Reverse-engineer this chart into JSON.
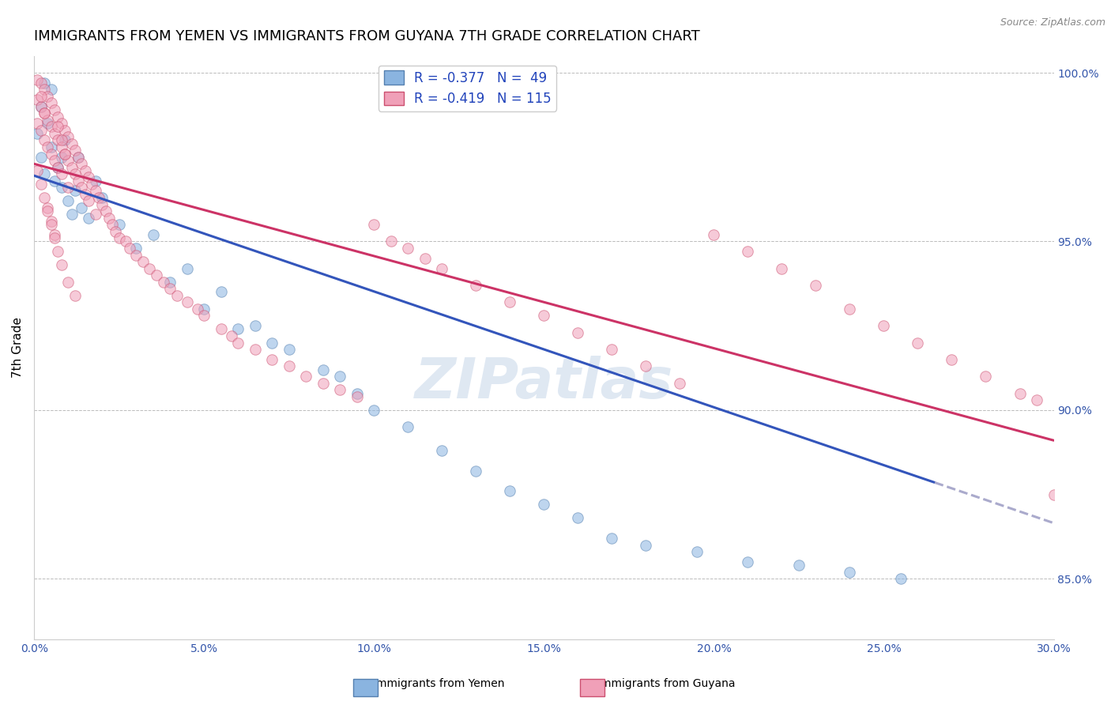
{
  "title": "IMMIGRANTS FROM YEMEN VS IMMIGRANTS FROM GUYANA 7TH GRADE CORRELATION CHART",
  "source": "Source: ZipAtlas.com",
  "ylabel": "7th Grade",
  "xlim": [
    0.0,
    0.3
  ],
  "ylim": [
    0.832,
    1.005
  ],
  "ytick_labels": [
    "85.0%",
    "90.0%",
    "95.0%",
    "100.0%"
  ],
  "ytick_values": [
    0.85,
    0.9,
    0.95,
    1.0
  ],
  "xtick_labels": [
    "0.0%",
    "5.0%",
    "10.0%",
    "15.0%",
    "20.0%",
    "25.0%",
    "30.0%"
  ],
  "xtick_values": [
    0.0,
    0.05,
    0.1,
    0.15,
    0.2,
    0.25,
    0.3
  ],
  "yemen_color": "#8ab4e0",
  "yemen_edge": "#5580b0",
  "guyana_color": "#f0a0b8",
  "guyana_edge": "#cc5070",
  "blue_line_color": "#3355bb",
  "pink_line_color": "#cc3366",
  "dash_color": "#aaaacc",
  "line_width": 2.2,
  "marker_size": 95,
  "marker_alpha": 0.55,
  "watermark": "ZIPatlas",
  "background_color": "#ffffff",
  "grid_color": "#bbbbbb",
  "legend_fontsize": 12,
  "tick_fontsize": 10,
  "title_fontsize": 13,
  "ylabel_fontsize": 11,
  "yemen_label": "R = -0.377   N =  49",
  "guyana_label": "R = -0.419   N = 115",
  "blue_line_x0": 0.0,
  "blue_line_y0": 0.9695,
  "blue_line_slope": -0.3433,
  "blue_line_solid_end": 0.265,
  "pink_line_x0": 0.0,
  "pink_line_y0": 0.973,
  "pink_line_slope": -0.2733,
  "series_yemen_x": [
    0.001,
    0.002,
    0.002,
    0.003,
    0.004,
    0.005,
    0.006,
    0.007,
    0.008,
    0.009,
    0.01,
    0.011,
    0.012,
    0.013,
    0.014,
    0.016,
    0.018,
    0.02,
    0.025,
    0.03,
    0.035,
    0.04,
    0.045,
    0.05,
    0.055,
    0.06,
    0.065,
    0.07,
    0.075,
    0.085,
    0.09,
    0.095,
    0.1,
    0.11,
    0.12,
    0.13,
    0.14,
    0.15,
    0.16,
    0.17,
    0.18,
    0.195,
    0.21,
    0.225,
    0.24,
    0.255,
    0.005,
    0.003,
    0.008
  ],
  "series_yemen_y": [
    0.982,
    0.99,
    0.975,
    0.97,
    0.985,
    0.978,
    0.968,
    0.972,
    0.966,
    0.98,
    0.962,
    0.958,
    0.965,
    0.975,
    0.96,
    0.957,
    0.968,
    0.963,
    0.955,
    0.948,
    0.952,
    0.938,
    0.942,
    0.93,
    0.935,
    0.924,
    0.925,
    0.92,
    0.918,
    0.912,
    0.91,
    0.905,
    0.9,
    0.895,
    0.888,
    0.882,
    0.876,
    0.872,
    0.868,
    0.862,
    0.86,
    0.858,
    0.855,
    0.854,
    0.852,
    0.85,
    0.995,
    0.997,
    0.975
  ],
  "series_guyana_x": [
    0.001,
    0.001,
    0.001,
    0.002,
    0.002,
    0.002,
    0.003,
    0.003,
    0.003,
    0.004,
    0.004,
    0.004,
    0.005,
    0.005,
    0.005,
    0.006,
    0.006,
    0.006,
    0.007,
    0.007,
    0.007,
    0.008,
    0.008,
    0.008,
    0.009,
    0.009,
    0.01,
    0.01,
    0.01,
    0.011,
    0.011,
    0.012,
    0.012,
    0.013,
    0.013,
    0.014,
    0.014,
    0.015,
    0.015,
    0.016,
    0.016,
    0.017,
    0.018,
    0.018,
    0.019,
    0.02,
    0.021,
    0.022,
    0.023,
    0.024,
    0.025,
    0.027,
    0.028,
    0.03,
    0.032,
    0.034,
    0.036,
    0.038,
    0.04,
    0.042,
    0.045,
    0.048,
    0.05,
    0.055,
    0.058,
    0.06,
    0.065,
    0.07,
    0.075,
    0.08,
    0.085,
    0.09,
    0.095,
    0.1,
    0.105,
    0.11,
    0.115,
    0.12,
    0.13,
    0.14,
    0.15,
    0.16,
    0.17,
    0.18,
    0.19,
    0.2,
    0.21,
    0.22,
    0.23,
    0.24,
    0.25,
    0.26,
    0.27,
    0.28,
    0.29,
    0.295,
    0.3,
    0.004,
    0.005,
    0.006,
    0.002,
    0.003,
    0.007,
    0.008,
    0.009,
    0.001,
    0.002,
    0.003,
    0.004,
    0.005,
    0.006,
    0.007,
    0.008,
    0.01,
    0.012
  ],
  "series_guyana_y": [
    0.998,
    0.992,
    0.985,
    0.997,
    0.99,
    0.983,
    0.995,
    0.988,
    0.98,
    0.993,
    0.986,
    0.978,
    0.991,
    0.984,
    0.976,
    0.989,
    0.982,
    0.974,
    0.987,
    0.98,
    0.972,
    0.985,
    0.978,
    0.97,
    0.983,
    0.976,
    0.981,
    0.974,
    0.966,
    0.979,
    0.972,
    0.977,
    0.97,
    0.975,
    0.968,
    0.973,
    0.966,
    0.971,
    0.964,
    0.969,
    0.962,
    0.967,
    0.965,
    0.958,
    0.963,
    0.961,
    0.959,
    0.957,
    0.955,
    0.953,
    0.951,
    0.95,
    0.948,
    0.946,
    0.944,
    0.942,
    0.94,
    0.938,
    0.936,
    0.934,
    0.932,
    0.93,
    0.928,
    0.924,
    0.922,
    0.92,
    0.918,
    0.915,
    0.913,
    0.91,
    0.908,
    0.906,
    0.904,
    0.955,
    0.95,
    0.948,
    0.945,
    0.942,
    0.937,
    0.932,
    0.928,
    0.923,
    0.918,
    0.913,
    0.908,
    0.952,
    0.947,
    0.942,
    0.937,
    0.93,
    0.925,
    0.92,
    0.915,
    0.91,
    0.905,
    0.903,
    0.875,
    0.96,
    0.956,
    0.952,
    0.993,
    0.988,
    0.984,
    0.98,
    0.976,
    0.971,
    0.967,
    0.963,
    0.959,
    0.955,
    0.951,
    0.947,
    0.943,
    0.938,
    0.934
  ]
}
